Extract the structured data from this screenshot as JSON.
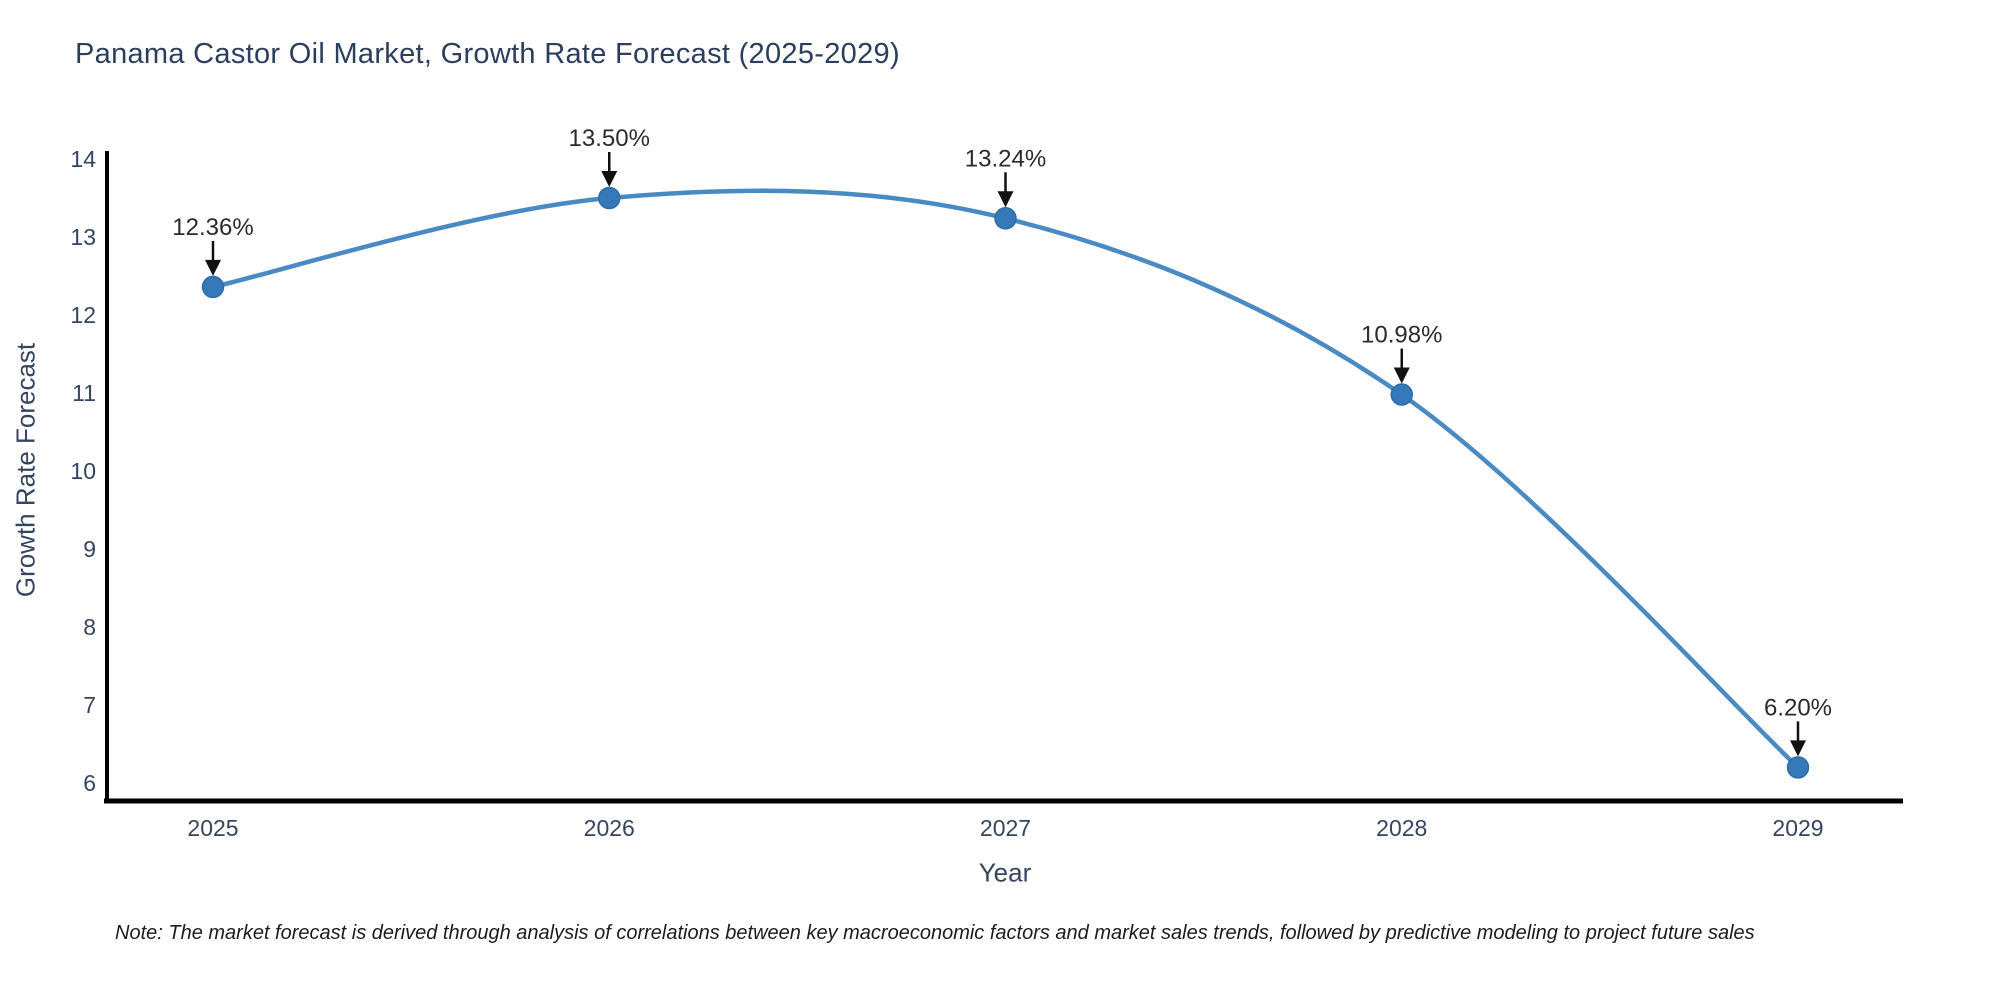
{
  "title": "Panama Castor Oil Market, Growth Rate Forecast (2025-2029)",
  "note": "Note: The market forecast is derived through analysis of correlations between key macroeconomic factors and market sales trends, followed by predictive modeling to project future sales",
  "chart_data": {
    "type": "line",
    "title": "Panama Castor Oil Market, Growth Rate Forecast (2025-2029)",
    "xlabel": "Year",
    "ylabel": "Growth Rate Forecast",
    "x": [
      "2025",
      "2026",
      "2027",
      "2028",
      "2029"
    ],
    "values": [
      12.36,
      13.5,
      13.24,
      10.98,
      6.2
    ],
    "point_labels": [
      "12.36%",
      "13.50%",
      "13.24%",
      "10.98%",
      "6.20%"
    ],
    "ylim": [
      6,
      14
    ],
    "yticks": [
      6,
      7,
      8,
      9,
      10,
      11,
      12,
      13,
      14
    ],
    "grid": false,
    "legend": "none",
    "smooth": true,
    "colors": {
      "line": "#4a8ac4",
      "marker_fill": "#3579b8",
      "marker_edge": "#2e6ca8",
      "annotation_text": "#2b2b2b",
      "annotation_arrow": "#111111",
      "axis_spine": "#000000",
      "tick_text": "#36455f",
      "title_text": "#2c3e5d"
    }
  }
}
